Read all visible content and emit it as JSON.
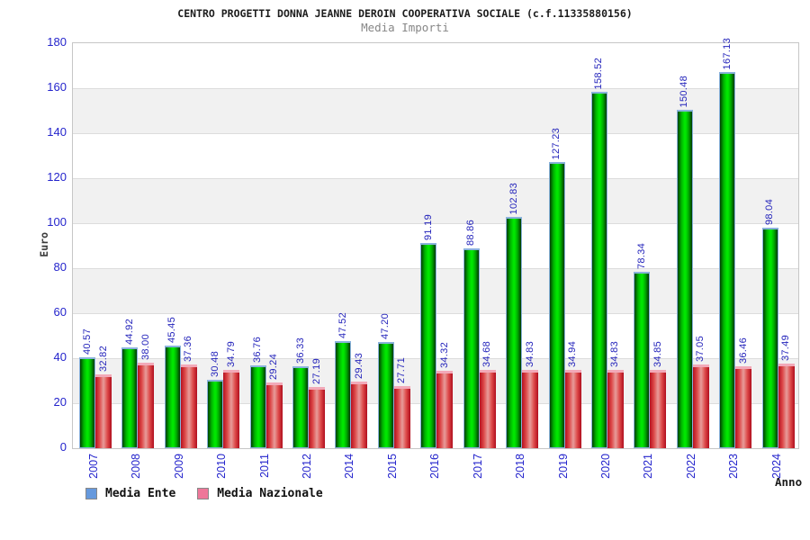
{
  "chart_data": {
    "type": "bar",
    "title": "CENTRO PROGETTI DONNA JEANNE DEROIN COOPERATIVA SOCIALE (c.f.11335880156)",
    "subtitle": "Media Importi",
    "xlabel": "Anno",
    "ylabel": "Euro",
    "ylim": [
      0,
      180
    ],
    "ytick_step": 20,
    "grid": "horizontal-bands-alternating",
    "legend_position": "bottom-left",
    "band_color": "#f1f1f1",
    "tick_label_color": "#2424cc",
    "value_label_color": "#2424bb",
    "categories": [
      "2007",
      "2008",
      "2009",
      "2010",
      "2011",
      "2012",
      "2014",
      "2015",
      "2016",
      "2017",
      "2018",
      "2019",
      "2020",
      "2021",
      "2022",
      "2023",
      "2024"
    ],
    "series": [
      {
        "name": "Media Ente",
        "bar_color": "#00cc00",
        "legend_color": "#6699dd",
        "values": [
          "40.57",
          "44.92",
          "45.45",
          "30.48",
          "36.76",
          "36.33",
          "47.52",
          "47.20",
          "91.19",
          "88.86",
          "102.83",
          "127.23",
          "158.52",
          "78.34",
          "150.48",
          "167.13",
          "98.04"
        ]
      },
      {
        "name": "Media Nazionale",
        "bar_color": "#e03030",
        "legend_color": "#ee7799",
        "values": [
          "32.82",
          "38.00",
          "37.36",
          "34.79",
          "29.24",
          "27.19",
          "29.43",
          "27.71",
          "34.32",
          "34.68",
          "34.83",
          "34.94",
          "34.83",
          "34.85",
          "37.05",
          "36.46",
          "37.49"
        ]
      }
    ]
  }
}
